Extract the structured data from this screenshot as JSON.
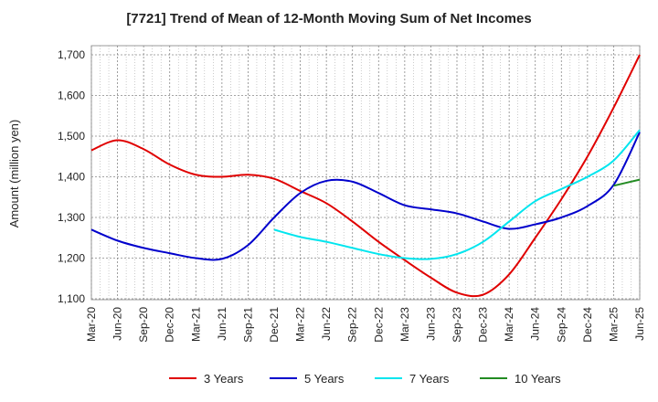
{
  "chart_data": {
    "type": "line",
    "title": "[7721]  Trend of Mean of 12-Month Moving Sum of Net Incomes",
    "xlabel": "",
    "ylabel": "Amount (million yen)",
    "ylim": [
      1100,
      1700
    ],
    "yticks": [
      1100,
      1200,
      1300,
      1400,
      1500,
      1600,
      1700
    ],
    "ytick_labels": [
      "1,100",
      "1,200",
      "1,300",
      "1,400",
      "1,500",
      "1,600",
      "1,700"
    ],
    "categories": [
      "Mar-20",
      "Jun-20",
      "Sep-20",
      "Dec-20",
      "Mar-21",
      "Jun-21",
      "Sep-21",
      "Dec-21",
      "Mar-22",
      "Jun-22",
      "Sep-22",
      "Dec-22",
      "Mar-23",
      "Jun-23",
      "Sep-23",
      "Dec-23",
      "Mar-24",
      "Jun-24",
      "Sep-24",
      "Dec-24",
      "Mar-25",
      "Jun-25"
    ],
    "grid": true,
    "legend_position": "bottom",
    "series": [
      {
        "name": "3 Years",
        "color": "#e00000",
        "values": [
          1465,
          1490,
          1468,
          1430,
          1405,
          1400,
          1405,
          1395,
          1365,
          1335,
          1290,
          1240,
          1195,
          1152,
          1115,
          1110,
          1160,
          1250,
          1345,
          1450,
          1570,
          1700
        ]
      },
      {
        "name": "5 Years",
        "color": "#0000cc",
        "values": [
          1270,
          1243,
          1225,
          1212,
          1200,
          1198,
          1232,
          1300,
          1360,
          1390,
          1388,
          1360,
          1330,
          1320,
          1310,
          1290,
          1272,
          1283,
          1300,
          1328,
          1380,
          1510
        ]
      },
      {
        "name": "7 Years",
        "color": "#00e5ee",
        "values": [
          null,
          null,
          null,
          null,
          null,
          null,
          null,
          1270,
          1252,
          1240,
          1225,
          1210,
          1200,
          1198,
          1210,
          1240,
          1290,
          1340,
          1370,
          1400,
          1440,
          1515
        ]
      },
      {
        "name": "10 Years",
        "color": "#228b22",
        "values": [
          null,
          null,
          null,
          null,
          null,
          null,
          null,
          null,
          null,
          null,
          null,
          null,
          null,
          null,
          null,
          null,
          null,
          null,
          null,
          null,
          1378,
          1393
        ]
      }
    ]
  }
}
